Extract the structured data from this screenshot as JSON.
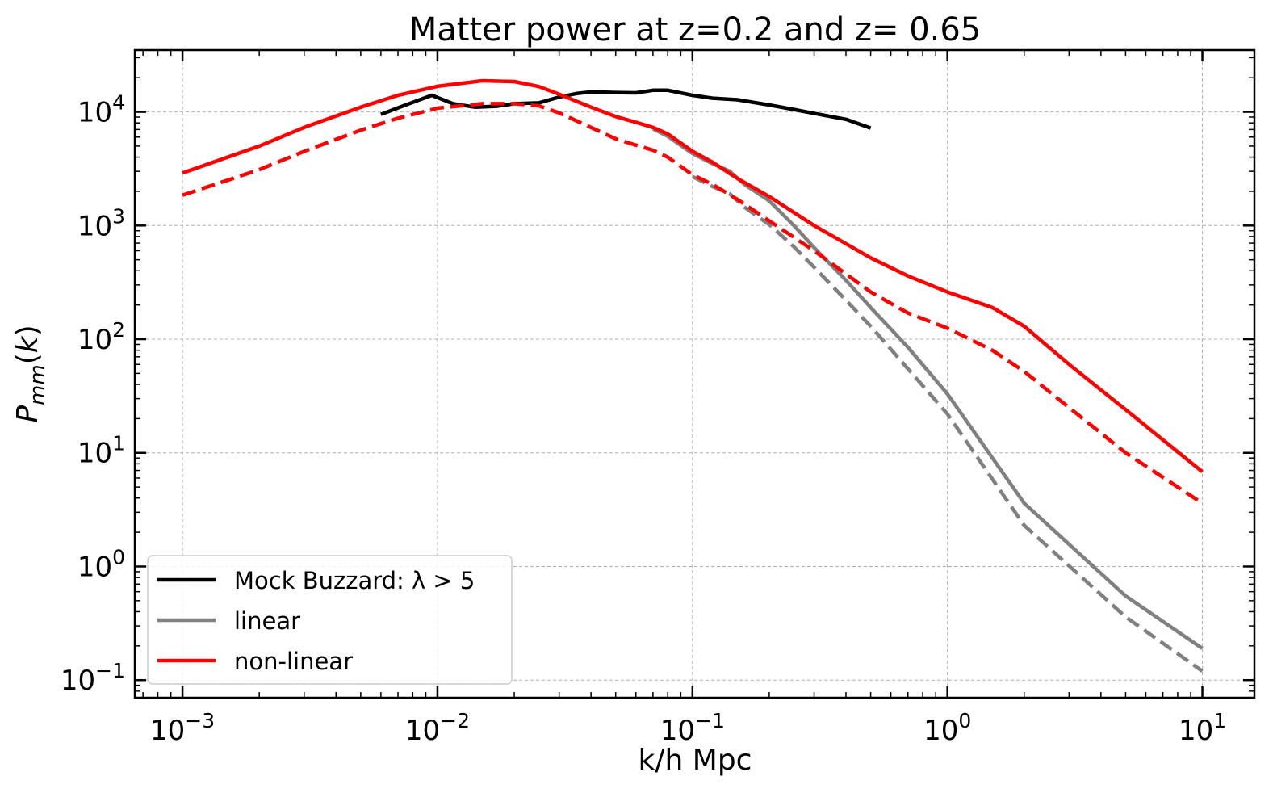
{
  "chart_data": {
    "type": "line",
    "title": "Matter power at z=0.2 and z= 0.65",
    "xlabel": "k/h Mpc",
    "ylabel": "P_mm(k)",
    "xscale": "log",
    "yscale": "log",
    "xlim": [
      0.00065,
      16
    ],
    "ylim": [
      0.07,
      35000
    ],
    "xticks": [
      {
        "value": 0.001,
        "base": "10",
        "exp": "−3"
      },
      {
        "value": 0.01,
        "base": "10",
        "exp": "−2"
      },
      {
        "value": 0.1,
        "base": "10",
        "exp": "−1"
      },
      {
        "value": 1,
        "base": "10",
        "exp": "0"
      },
      {
        "value": 10,
        "base": "10",
        "exp": "1"
      }
    ],
    "yticks": [
      {
        "value": 0.1,
        "base": "10",
        "exp": "−1"
      },
      {
        "value": 1,
        "base": "10",
        "exp": "0"
      },
      {
        "value": 10,
        "base": "10",
        "exp": "1"
      },
      {
        "value": 100,
        "base": "10",
        "exp": "2"
      },
      {
        "value": 1000,
        "base": "10",
        "exp": "3"
      },
      {
        "value": 10000,
        "base": "10",
        "exp": "4"
      }
    ],
    "grid": true,
    "legend_position": "bottom-left",
    "legend": [
      {
        "label": "Mock Buzzard: λ > 5",
        "color": "#000000"
      },
      {
        "label": "linear",
        "color": "#808080"
      },
      {
        "label": "non-linear",
        "color": "#ff0000"
      }
    ],
    "series": [
      {
        "color": "#000000",
        "dash": false,
        "x": [
          0.006,
          0.0075,
          0.0095,
          0.0115,
          0.014,
          0.017,
          0.02,
          0.025,
          0.03,
          0.035,
          0.04,
          0.05,
          0.06,
          0.07,
          0.08,
          0.1,
          0.12,
          0.15,
          0.2,
          0.25,
          0.3,
          0.4,
          0.5
        ],
        "y": [
          9500,
          11500,
          14000,
          11800,
          11000,
          11200,
          11800,
          12000,
          13500,
          14500,
          15000,
          14800,
          14700,
          15500,
          15500,
          14000,
          13200,
          12800,
          11500,
          10500,
          9700,
          8600,
          7200
        ]
      },
      {
        "color": "#808080",
        "dash": false,
        "x": [
          0.07,
          0.08,
          0.1,
          0.12,
          0.14,
          0.16,
          0.2,
          0.25,
          0.3,
          0.4,
          0.5,
          0.7,
          1,
          2,
          5,
          10
        ],
        "y": [
          7100,
          6100,
          4300,
          3500,
          3000,
          2300,
          1650,
          1000,
          640,
          330,
          190,
          85,
          33,
          3.6,
          0.55,
          0.19
        ]
      },
      {
        "color": "#808080",
        "dash": true,
        "x": [
          0.1,
          0.12,
          0.14,
          0.16,
          0.2,
          0.25,
          0.3,
          0.4,
          0.5,
          0.7,
          1,
          2,
          5,
          10
        ],
        "y": [
          2700,
          2200,
          1900,
          1450,
          1020,
          650,
          430,
          220,
          130,
          55,
          22,
          2.3,
          0.36,
          0.12
        ]
      },
      {
        "color": "#ff0000",
        "dash": false,
        "x": [
          0.001,
          0.002,
          0.003,
          0.005,
          0.007,
          0.01,
          0.015,
          0.02,
          0.025,
          0.03,
          0.04,
          0.05,
          0.06,
          0.07,
          0.08,
          0.1,
          0.12,
          0.15,
          0.2,
          0.3,
          0.5,
          0.7,
          1,
          1.5,
          2,
          3,
          5,
          10
        ],
        "y": [
          2900,
          5000,
          7300,
          11000,
          14000,
          16800,
          18800,
          18500,
          16700,
          14300,
          11000,
          9100,
          8100,
          7300,
          6400,
          4500,
          3600,
          2600,
          1800,
          1000,
          520,
          360,
          260,
          190,
          130,
          60,
          24,
          6.8
        ]
      },
      {
        "color": "#ff0000",
        "dash": true,
        "x": [
          0.001,
          0.002,
          0.003,
          0.005,
          0.007,
          0.01,
          0.015,
          0.02,
          0.025,
          0.03,
          0.04,
          0.05,
          0.06,
          0.07,
          0.08,
          0.1,
          0.12,
          0.15,
          0.2,
          0.3,
          0.5,
          0.7,
          1,
          1.5,
          2,
          3,
          5,
          10
        ],
        "y": [
          1850,
          3100,
          4500,
          6900,
          8800,
          10800,
          11800,
          11800,
          11300,
          9800,
          7300,
          5800,
          5100,
          4600,
          4000,
          2800,
          2300,
          1700,
          1100,
          600,
          260,
          170,
          125,
          80,
          52,
          25,
          10,
          3.6
        ]
      }
    ]
  }
}
